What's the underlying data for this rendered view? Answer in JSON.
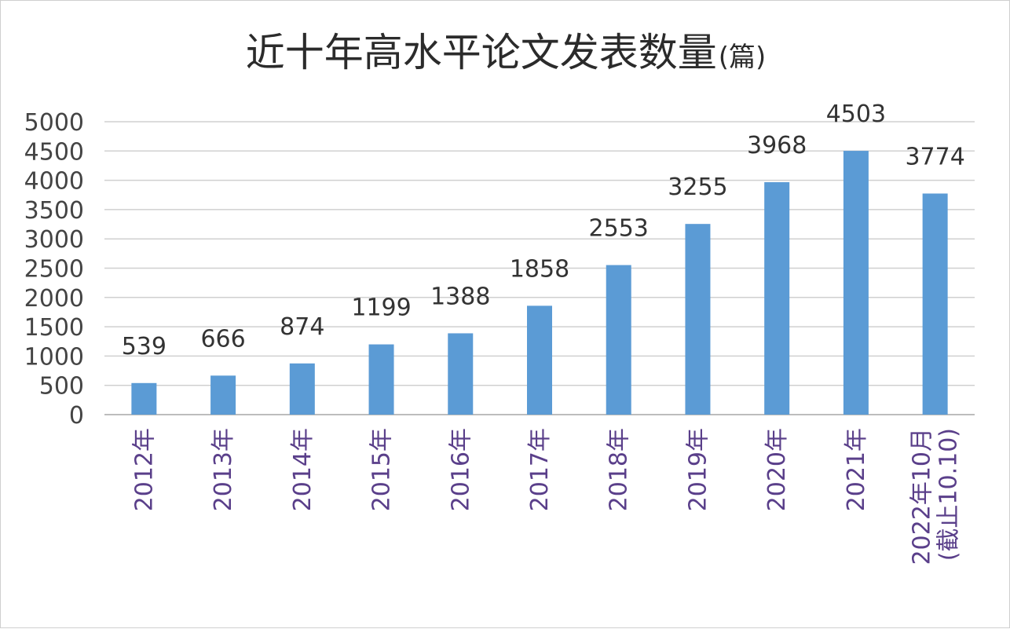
{
  "chart_data": {
    "type": "bar",
    "title": "近十年高水平论文发表数量",
    "title_unit": "(篇)",
    "categories": [
      [
        "2012年"
      ],
      [
        "2013年"
      ],
      [
        "2014年"
      ],
      [
        "2015年"
      ],
      [
        "2016年"
      ],
      [
        "2017年"
      ],
      [
        "2018年"
      ],
      [
        "2019年"
      ],
      [
        "2020年"
      ],
      [
        "2021年"
      ],
      [
        "2022年10月",
        "(截止10.10)"
      ]
    ],
    "values": [
      539,
      666,
      874,
      1199,
      1388,
      1858,
      2553,
      3255,
      3968,
      4503,
      3774
    ],
    "ylim": [
      0,
      5000
    ],
    "yticks": [
      0,
      500,
      1000,
      1500,
      2000,
      2500,
      3000,
      3500,
      4000,
      4500,
      5000
    ],
    "grid": true,
    "bar_color": "#5b9bd5",
    "data_labels": true
  }
}
